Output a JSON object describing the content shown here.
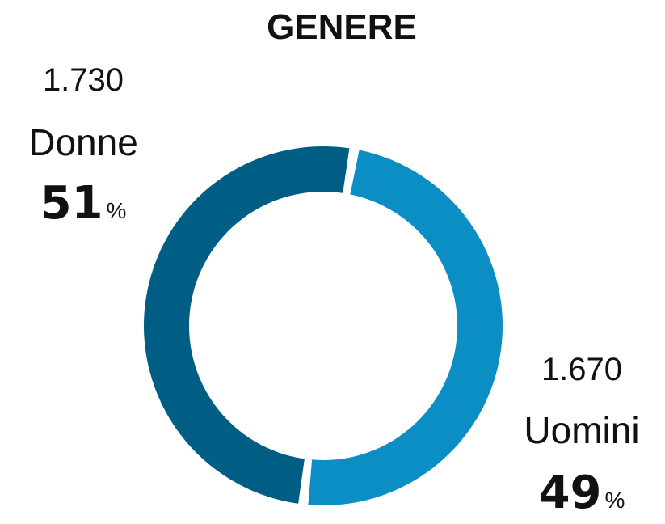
{
  "chart_data": {
    "type": "donut",
    "title": "GENERE",
    "categories": [
      "Donne",
      "Uomini"
    ],
    "values": [
      51,
      49
    ],
    "value_suffix": "%",
    "counts": [
      {
        "value": 1730,
        "label": "1.730"
      },
      {
        "value": 1670,
        "label": "1.670"
      }
    ],
    "colors": [
      "#005d84",
      "#0a8ec3"
    ]
  }
}
